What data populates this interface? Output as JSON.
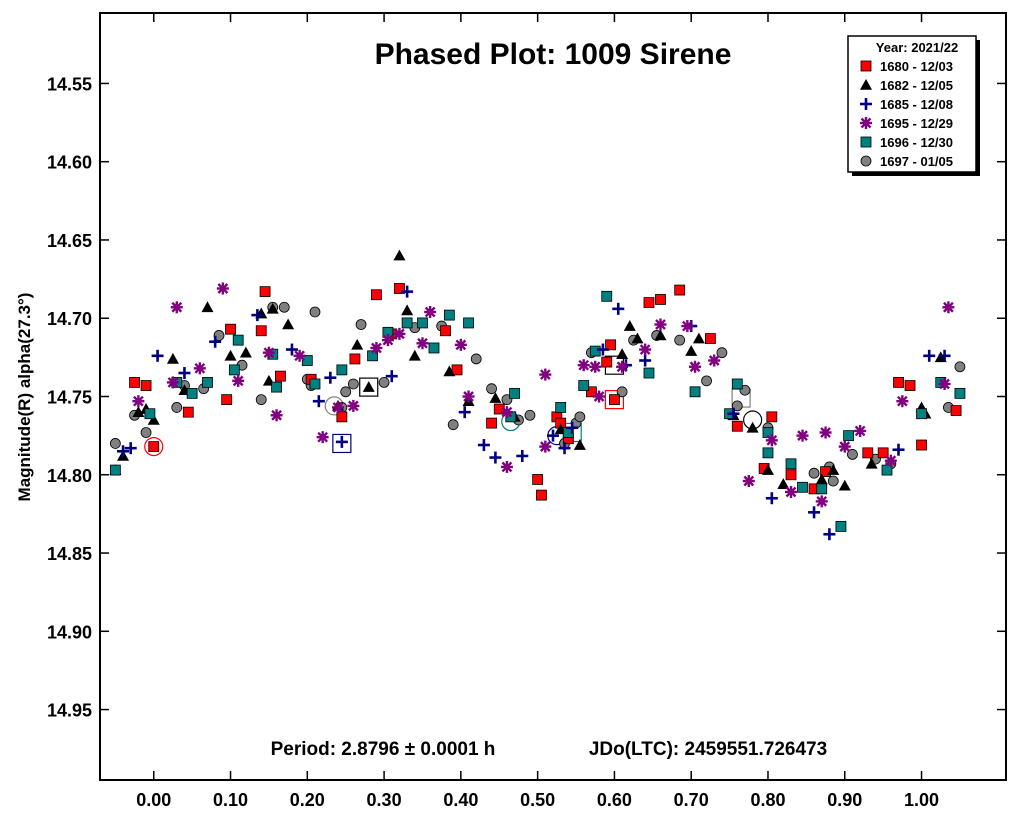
{
  "chart_data": {
    "type": "scatter",
    "title": "Phased Plot: 1009 Sirene",
    "ylabel": "Magnitude(R) alpha(27.3°)",
    "xlabel": "",
    "period_text": "Period: 2.8796 ± 0.0001 h",
    "epoch_text": "JDo(LTC): 2459551.726473",
    "xlim": [
      -0.07,
      1.11
    ],
    "ylim": [
      14.995,
      14.505
    ],
    "y_inverted": true,
    "x_ticks": [
      0.0,
      0.1,
      0.2,
      0.3,
      0.4,
      0.5,
      0.6,
      0.7,
      0.8,
      0.9,
      1.0
    ],
    "x_tick_labels": [
      "0.00",
      "0.10",
      "0.20",
      "0.30",
      "0.40",
      "0.50",
      "0.60",
      "0.70",
      "0.80",
      "0.90",
      "1.00"
    ],
    "y_ticks": [
      14.55,
      14.6,
      14.65,
      14.7,
      14.75,
      14.8,
      14.85,
      14.9,
      14.95
    ],
    "y_tick_labels": [
      "14.55",
      "14.60",
      "14.65",
      "14.70",
      "14.75",
      "14.80",
      "14.85",
      "14.90",
      "14.95"
    ],
    "grid": false,
    "legend": {
      "title": "Year: 2021/22",
      "position": "top-right",
      "entries": [
        "1680 - 12/03",
        "1682 - 12/05",
        "1685 - 12/08",
        "1695 - 12/29",
        "1696 - 12/30",
        "1697 - 01/05"
      ]
    },
    "series": [
      {
        "name": "1680 - 12/03",
        "marker": "square",
        "color": "#ff0000",
        "points": [
          [
            -0.025,
            14.741
          ],
          [
            -0.01,
            14.743
          ],
          [
            0.0,
            14.782
          ],
          [
            0.045,
            14.76
          ],
          [
            0.095,
            14.752
          ],
          [
            0.1,
            14.707
          ],
          [
            0.14,
            14.708
          ],
          [
            0.145,
            14.683
          ],
          [
            0.165,
            14.737
          ],
          [
            0.205,
            14.739
          ],
          [
            0.245,
            14.763
          ],
          [
            0.262,
            14.726
          ],
          [
            0.29,
            14.685
          ],
          [
            0.31,
            14.71
          ],
          [
            0.32,
            14.681
          ],
          [
            0.38,
            14.708
          ],
          [
            0.395,
            14.733
          ],
          [
            0.44,
            14.767
          ],
          [
            0.45,
            14.758
          ],
          [
            0.5,
            14.803
          ],
          [
            0.505,
            14.813
          ],
          [
            0.525,
            14.763
          ],
          [
            0.53,
            14.767
          ],
          [
            0.54,
            14.777
          ],
          [
            0.57,
            14.747
          ],
          [
            0.59,
            14.728
          ],
          [
            0.595,
            14.717
          ],
          [
            0.6,
            14.752
          ],
          [
            0.645,
            14.69
          ],
          [
            0.66,
            14.688
          ],
          [
            0.685,
            14.682
          ],
          [
            0.725,
            14.713
          ],
          [
            0.76,
            14.769
          ],
          [
            0.795,
            14.796
          ],
          [
            0.805,
            14.763
          ],
          [
            0.83,
            14.8
          ],
          [
            0.86,
            14.809
          ],
          [
            0.875,
            14.798
          ],
          [
            0.93,
            14.786
          ],
          [
            0.95,
            14.786
          ],
          [
            0.97,
            14.741
          ],
          [
            0.985,
            14.743
          ],
          [
            1.0,
            14.781
          ],
          [
            1.045,
            14.759
          ]
        ]
      },
      {
        "name": "1682 - 12/05",
        "marker": "triangle",
        "color": "#000000",
        "points": [
          [
            -0.05,
            14.797
          ],
          [
            -0.04,
            14.788
          ],
          [
            -0.02,
            14.76
          ],
          [
            -0.01,
            14.758
          ],
          [
            0.0,
            14.765
          ],
          [
            0.025,
            14.726
          ],
          [
            0.04,
            14.746
          ],
          [
            0.07,
            14.693
          ],
          [
            0.1,
            14.724
          ],
          [
            0.12,
            14.722
          ],
          [
            0.14,
            14.697
          ],
          [
            0.15,
            14.74
          ],
          [
            0.155,
            14.694
          ],
          [
            0.175,
            14.704
          ],
          [
            0.24,
            14.756
          ],
          [
            0.265,
            14.717
          ],
          [
            0.28,
            14.744
          ],
          [
            0.32,
            14.66
          ],
          [
            0.33,
            14.695
          ],
          [
            0.34,
            14.724
          ],
          [
            0.385,
            14.734
          ],
          [
            0.41,
            14.753
          ],
          [
            0.445,
            14.751
          ],
          [
            0.47,
            14.763
          ],
          [
            0.53,
            14.771
          ],
          [
            0.555,
            14.781
          ],
          [
            0.61,
            14.723
          ],
          [
            0.62,
            14.705
          ],
          [
            0.63,
            14.713
          ],
          [
            0.66,
            14.711
          ],
          [
            0.7,
            14.721
          ],
          [
            0.71,
            14.713
          ],
          [
            0.755,
            14.762
          ],
          [
            0.78,
            14.77
          ],
          [
            0.8,
            14.797
          ],
          [
            0.82,
            14.806
          ],
          [
            0.87,
            14.803
          ],
          [
            0.885,
            14.797
          ],
          [
            0.9,
            14.807
          ],
          [
            0.935,
            14.793
          ],
          [
            1.0,
            14.757
          ],
          [
            1.005,
            14.761
          ],
          [
            1.025,
            14.725
          ]
        ]
      },
      {
        "name": "1685 - 12/08",
        "marker": "plus",
        "color": "#000080",
        "points": [
          [
            -0.04,
            14.785
          ],
          [
            -0.03,
            14.783
          ],
          [
            0.005,
            14.724
          ],
          [
            0.04,
            14.735
          ],
          [
            0.08,
            14.715
          ],
          [
            0.135,
            14.698
          ],
          [
            0.18,
            14.72
          ],
          [
            0.215,
            14.753
          ],
          [
            0.23,
            14.738
          ],
          [
            0.245,
            14.779
          ],
          [
            0.31,
            14.737
          ],
          [
            0.33,
            14.683
          ],
          [
            0.405,
            14.76
          ],
          [
            0.43,
            14.781
          ],
          [
            0.445,
            14.789
          ],
          [
            0.48,
            14.788
          ],
          [
            0.52,
            14.775
          ],
          [
            0.535,
            14.783
          ],
          [
            0.545,
            14.77
          ],
          [
            0.585,
            14.72
          ],
          [
            0.605,
            14.694
          ],
          [
            0.615,
            14.73
          ],
          [
            0.64,
            14.727
          ],
          [
            0.7,
            14.705
          ],
          [
            0.755,
            14.761
          ],
          [
            0.805,
            14.815
          ],
          [
            0.86,
            14.824
          ],
          [
            0.88,
            14.838
          ],
          [
            0.97,
            14.784
          ],
          [
            1.01,
            14.724
          ],
          [
            1.03,
            14.724
          ]
        ]
      },
      {
        "name": "1695 - 12/29",
        "marker": "star",
        "color": "#800080",
        "points": [
          [
            -0.02,
            14.753
          ],
          [
            0.025,
            14.741
          ],
          [
            0.03,
            14.693
          ],
          [
            0.06,
            14.732
          ],
          [
            0.09,
            14.681
          ],
          [
            0.11,
            14.74
          ],
          [
            0.15,
            14.722
          ],
          [
            0.16,
            14.762
          ],
          [
            0.19,
            14.724
          ],
          [
            0.22,
            14.776
          ],
          [
            0.24,
            14.757
          ],
          [
            0.26,
            14.756
          ],
          [
            0.29,
            14.719
          ],
          [
            0.305,
            14.714
          ],
          [
            0.32,
            14.71
          ],
          [
            0.35,
            14.716
          ],
          [
            0.36,
            14.696
          ],
          [
            0.4,
            14.717
          ],
          [
            0.41,
            14.75
          ],
          [
            0.46,
            14.795
          ],
          [
            0.46,
            14.76
          ],
          [
            0.51,
            14.782
          ],
          [
            0.51,
            14.736
          ],
          [
            0.56,
            14.73
          ],
          [
            0.575,
            14.731
          ],
          [
            0.58,
            14.75
          ],
          [
            0.61,
            14.731
          ],
          [
            0.64,
            14.72
          ],
          [
            0.66,
            14.704
          ],
          [
            0.695,
            14.705
          ],
          [
            0.705,
            14.731
          ],
          [
            0.73,
            14.727
          ],
          [
            0.775,
            14.804
          ],
          [
            0.805,
            14.778
          ],
          [
            0.83,
            14.811
          ],
          [
            0.845,
            14.775
          ],
          [
            0.87,
            14.817
          ],
          [
            0.875,
            14.773
          ],
          [
            0.9,
            14.782
          ],
          [
            0.92,
            14.772
          ],
          [
            0.96,
            14.791
          ],
          [
            0.975,
            14.753
          ],
          [
            1.03,
            14.742
          ],
          [
            1.035,
            14.693
          ]
        ]
      },
      {
        "name": "1696 - 12/30",
        "marker": "square",
        "color": "#008080",
        "points": [
          [
            -0.05,
            14.797
          ],
          [
            -0.005,
            14.761
          ],
          [
            0.03,
            14.741
          ],
          [
            0.05,
            14.748
          ],
          [
            0.07,
            14.741
          ],
          [
            0.105,
            14.733
          ],
          [
            0.11,
            14.714
          ],
          [
            0.155,
            14.723
          ],
          [
            0.16,
            14.744
          ],
          [
            0.2,
            14.727
          ],
          [
            0.21,
            14.742
          ],
          [
            0.245,
            14.733
          ],
          [
            0.285,
            14.724
          ],
          [
            0.305,
            14.709
          ],
          [
            0.33,
            14.703
          ],
          [
            0.35,
            14.703
          ],
          [
            0.365,
            14.719
          ],
          [
            0.385,
            14.698
          ],
          [
            0.41,
            14.703
          ],
          [
            0.465,
            14.763
          ],
          [
            0.47,
            14.748
          ],
          [
            0.53,
            14.757
          ],
          [
            0.54,
            14.773
          ],
          [
            0.56,
            14.743
          ],
          [
            0.575,
            14.721
          ],
          [
            0.59,
            14.686
          ],
          [
            0.645,
            14.735
          ],
          [
            0.705,
            14.747
          ],
          [
            0.75,
            14.761
          ],
          [
            0.76,
            14.742
          ],
          [
            0.8,
            14.773
          ],
          [
            0.8,
            14.786
          ],
          [
            0.83,
            14.793
          ],
          [
            0.845,
            14.808
          ],
          [
            0.87,
            14.809
          ],
          [
            0.895,
            14.833
          ],
          [
            0.905,
            14.775
          ],
          [
            0.955,
            14.797
          ],
          [
            1.0,
            14.761
          ],
          [
            1.025,
            14.741
          ],
          [
            1.05,
            14.748
          ]
        ]
      },
      {
        "name": "1697 - 01/05",
        "marker": "circle",
        "color": "#808080",
        "points": [
          [
            -0.05,
            14.78
          ],
          [
            -0.025,
            14.762
          ],
          [
            -0.01,
            14.773
          ],
          [
            0.03,
            14.757
          ],
          [
            0.04,
            14.743
          ],
          [
            0.065,
            14.745
          ],
          [
            0.085,
            14.711
          ],
          [
            0.115,
            14.73
          ],
          [
            0.14,
            14.752
          ],
          [
            0.155,
            14.693
          ],
          [
            0.17,
            14.693
          ],
          [
            0.2,
            14.739
          ],
          [
            0.205,
            14.743
          ],
          [
            0.21,
            14.696
          ],
          [
            0.245,
            14.757
          ],
          [
            0.25,
            14.747
          ],
          [
            0.26,
            14.742
          ],
          [
            0.27,
            14.704
          ],
          [
            0.3,
            14.741
          ],
          [
            0.34,
            14.706
          ],
          [
            0.375,
            14.705
          ],
          [
            0.39,
            14.768
          ],
          [
            0.42,
            14.726
          ],
          [
            0.44,
            14.745
          ],
          [
            0.46,
            14.752
          ],
          [
            0.475,
            14.765
          ],
          [
            0.49,
            14.762
          ],
          [
            0.535,
            14.78
          ],
          [
            0.55,
            14.767
          ],
          [
            0.555,
            14.763
          ],
          [
            0.57,
            14.722
          ],
          [
            0.61,
            14.747
          ],
          [
            0.625,
            14.714
          ],
          [
            0.655,
            14.711
          ],
          [
            0.685,
            14.714
          ],
          [
            0.72,
            14.74
          ],
          [
            0.74,
            14.722
          ],
          [
            0.76,
            14.756
          ],
          [
            0.77,
            14.746
          ],
          [
            0.8,
            14.77
          ],
          [
            0.86,
            14.799
          ],
          [
            0.88,
            14.795
          ],
          [
            0.885,
            14.804
          ],
          [
            0.91,
            14.787
          ],
          [
            0.94,
            14.79
          ],
          [
            0.96,
            14.793
          ],
          [
            1.035,
            14.757
          ],
          [
            1.05,
            14.731
          ]
        ]
      }
    ],
    "highlighted": [
      {
        "x": 0.0,
        "y": 14.782,
        "shape": "circle",
        "color": "#ff0000"
      },
      {
        "x": 0.245,
        "y": 14.78,
        "shape": "square",
        "color": "#000080"
      },
      {
        "x": 0.28,
        "y": 14.744,
        "shape": "square",
        "color": "#000000"
      },
      {
        "x": 0.235,
        "y": 14.756,
        "shape": "circle",
        "color": "#808080"
      },
      {
        "x": 0.465,
        "y": 14.766,
        "shape": "circle",
        "color": "#008080"
      },
      {
        "x": 0.525,
        "y": 14.775,
        "shape": "circle",
        "color": "#000080"
      },
      {
        "x": 0.545,
        "y": 14.773,
        "shape": "square",
        "color": "#008080"
      },
      {
        "x": 0.6,
        "y": 14.752,
        "shape": "square",
        "color": "#ff0000"
      },
      {
        "x": 0.6,
        "y": 14.73,
        "shape": "square",
        "color": "#000000"
      },
      {
        "x": 0.78,
        "y": 14.765,
        "shape": "circle",
        "color": "#000000"
      },
      {
        "x": 0.765,
        "y": 14.751,
        "shape": "square",
        "color": "#808080"
      }
    ]
  }
}
